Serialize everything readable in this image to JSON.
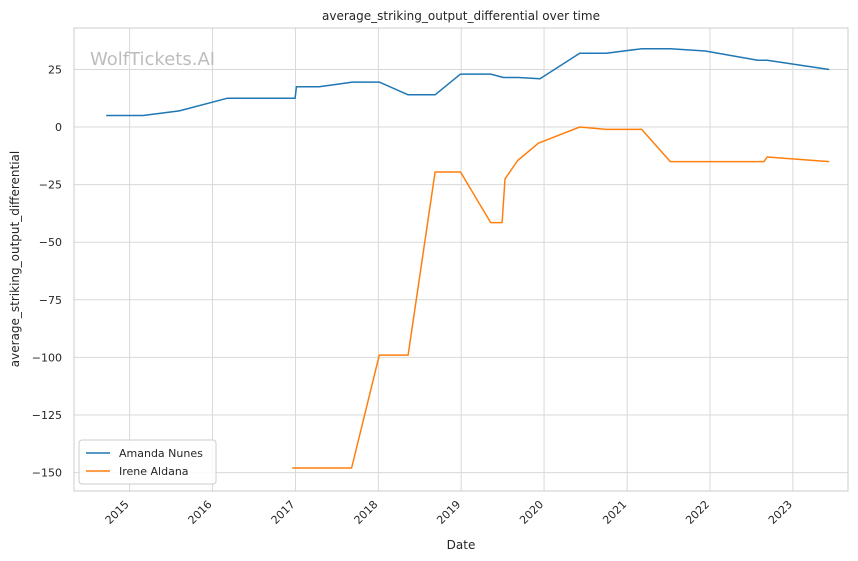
{
  "chart_data": {
    "type": "line",
    "title": "average_striking_output_differential over time",
    "xlabel": "Date",
    "ylabel": "average_striking_output_differential",
    "watermark": "WolfTickets.AI",
    "x_ticks": [
      "2015",
      "2016",
      "2017",
      "2018",
      "2019",
      "2020",
      "2021",
      "2022",
      "2023"
    ],
    "y_ticks": [
      "25",
      "0",
      "−25",
      "−50",
      "−75",
      "−100",
      "−125",
      "−150"
    ],
    "y_tick_values": [
      25,
      0,
      -25,
      -50,
      -75,
      -100,
      -125,
      -150
    ],
    "xlim": [
      "2014-05-01",
      "2023-09-01"
    ],
    "ylim": [
      -158,
      43
    ],
    "grid": true,
    "legend_position": "lower-left",
    "colors": {
      "series_0": "#1f77b4",
      "series_1": "#ff7f0e",
      "grid": "#d9d9d9",
      "spine": "#cccccc"
    },
    "series": [
      {
        "name": "Amanda Nunes",
        "color": "#1f77b4",
        "x": [
          "2014-09-20",
          "2015-03-01",
          "2015-08-08",
          "2016-03-05",
          "2016-12-30",
          "2017-01-05",
          "2017-04-15",
          "2017-09-09",
          "2018-01-05",
          "2018-05-12",
          "2018-09-08",
          "2018-12-29",
          "2019-05-11",
          "2019-07-06",
          "2019-09-10",
          "2019-12-14",
          "2020-06-06",
          "2020-10-01",
          "2021-03-06",
          "2021-07-10",
          "2021-12-11",
          "2022-07-30",
          "2022-09-10",
          "2023-06-10"
        ],
        "y": [
          5,
          5,
          7,
          12.5,
          12.5,
          17.5,
          17.5,
          19.5,
          19.5,
          14,
          14,
          23,
          23,
          21.5,
          21.5,
          21,
          32,
          32,
          34,
          34,
          33,
          29,
          29,
          25
        ]
      },
      {
        "name": "Irene Aldana",
        "color": "#ff7f0e",
        "x": [
          "2016-12-17",
          "2017-09-05",
          "2018-01-05",
          "2018-05-12",
          "2018-09-08",
          "2018-12-29",
          "2019-05-11",
          "2019-06-30",
          "2019-07-13",
          "2019-09-07",
          "2019-12-07",
          "2020-06-06",
          "2020-10-01",
          "2021-03-06",
          "2021-07-10",
          "2021-12-11",
          "2022-08-27",
          "2022-09-10",
          "2023-06-10"
        ],
        "y": [
          -148,
          -148,
          -99,
          -99,
          -19.5,
          -19.5,
          -41.5,
          -41.5,
          -22.5,
          -14.5,
          -7,
          0,
          -1,
          -1,
          -15,
          -15,
          -15,
          -13,
          -15
        ]
      }
    ]
  }
}
